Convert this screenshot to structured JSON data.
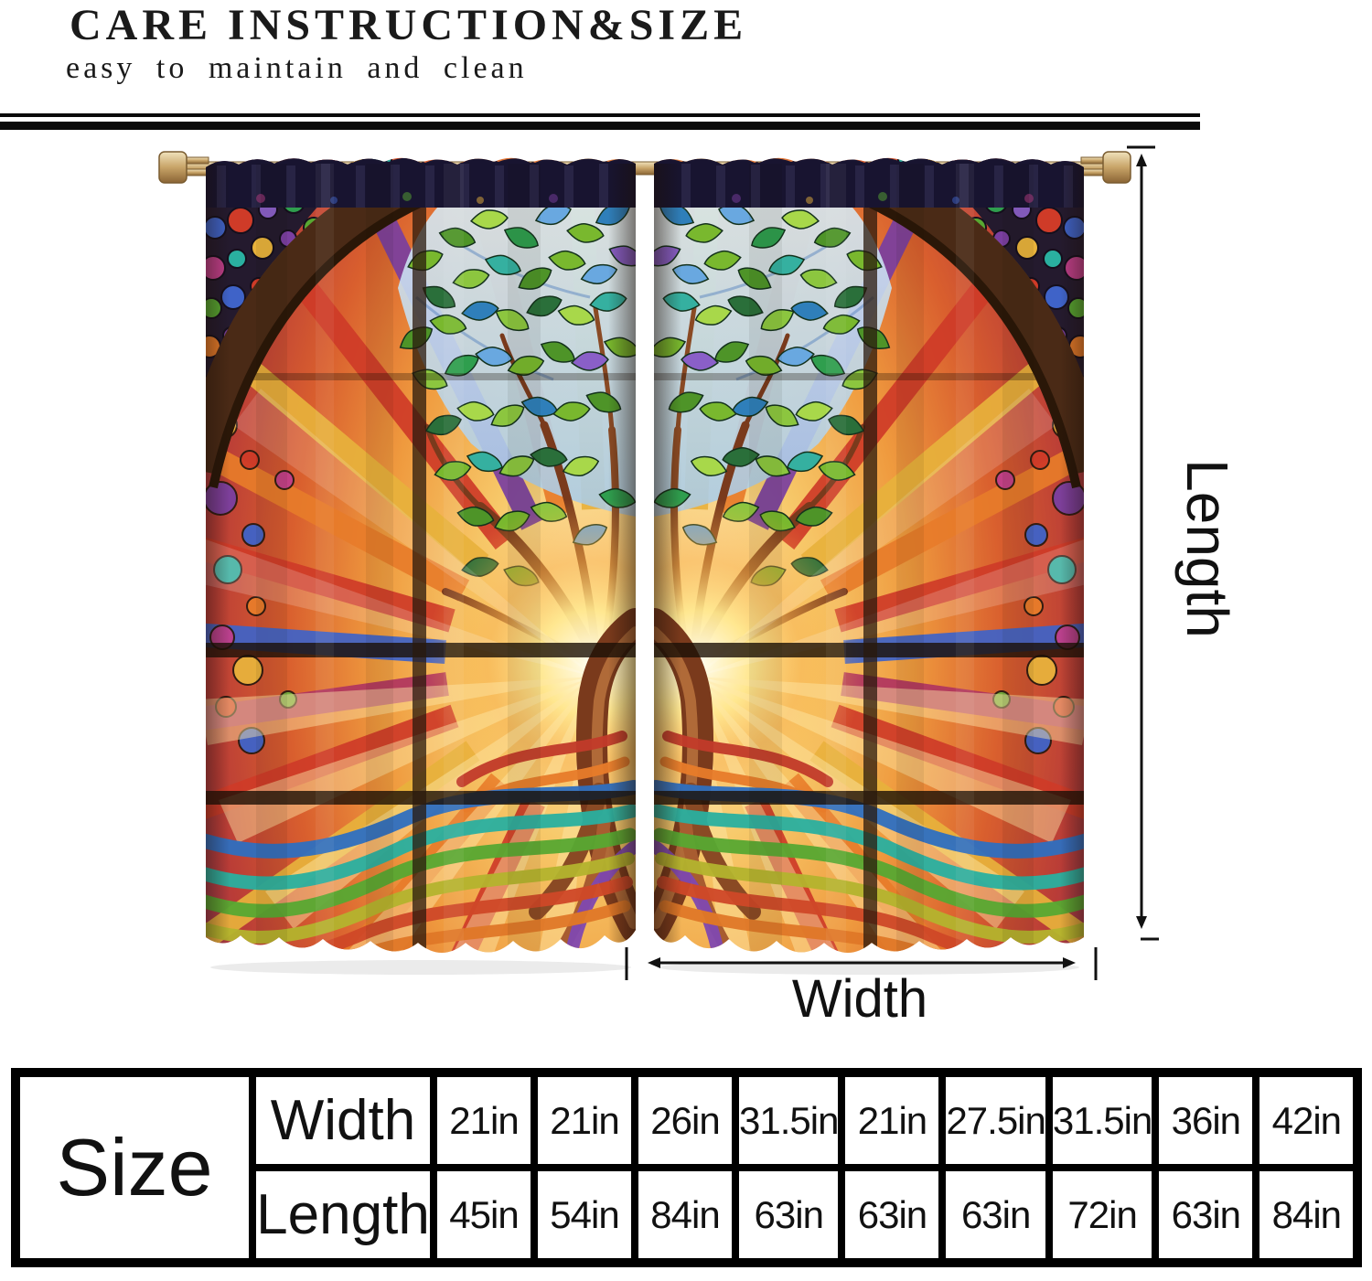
{
  "header": {
    "title": "CARE INSTRUCTION&SIZE",
    "subtitle": "easy to maintain and clean"
  },
  "annotations": {
    "length_label": "Length",
    "width_label": "Width"
  },
  "size_table": {
    "corner_label": "Size",
    "rows": [
      {
        "label": "Width",
        "values": [
          "21in",
          "21in",
          "26in",
          "31.5in",
          "21in",
          "27.5in",
          "31.5in",
          "36in",
          "42in"
        ]
      },
      {
        "label": "Length",
        "values": [
          "45in",
          "54in",
          "84in",
          "63in",
          "63in",
          "63in",
          "72in",
          "63in",
          "84in"
        ]
      }
    ]
  },
  "colors": {
    "divider": "#0a0a0a",
    "table_border": "#000000",
    "size_cell_bg": "#b5b5b5",
    "rod_gold": "#c8a468",
    "annotation_ink": "#111111"
  }
}
